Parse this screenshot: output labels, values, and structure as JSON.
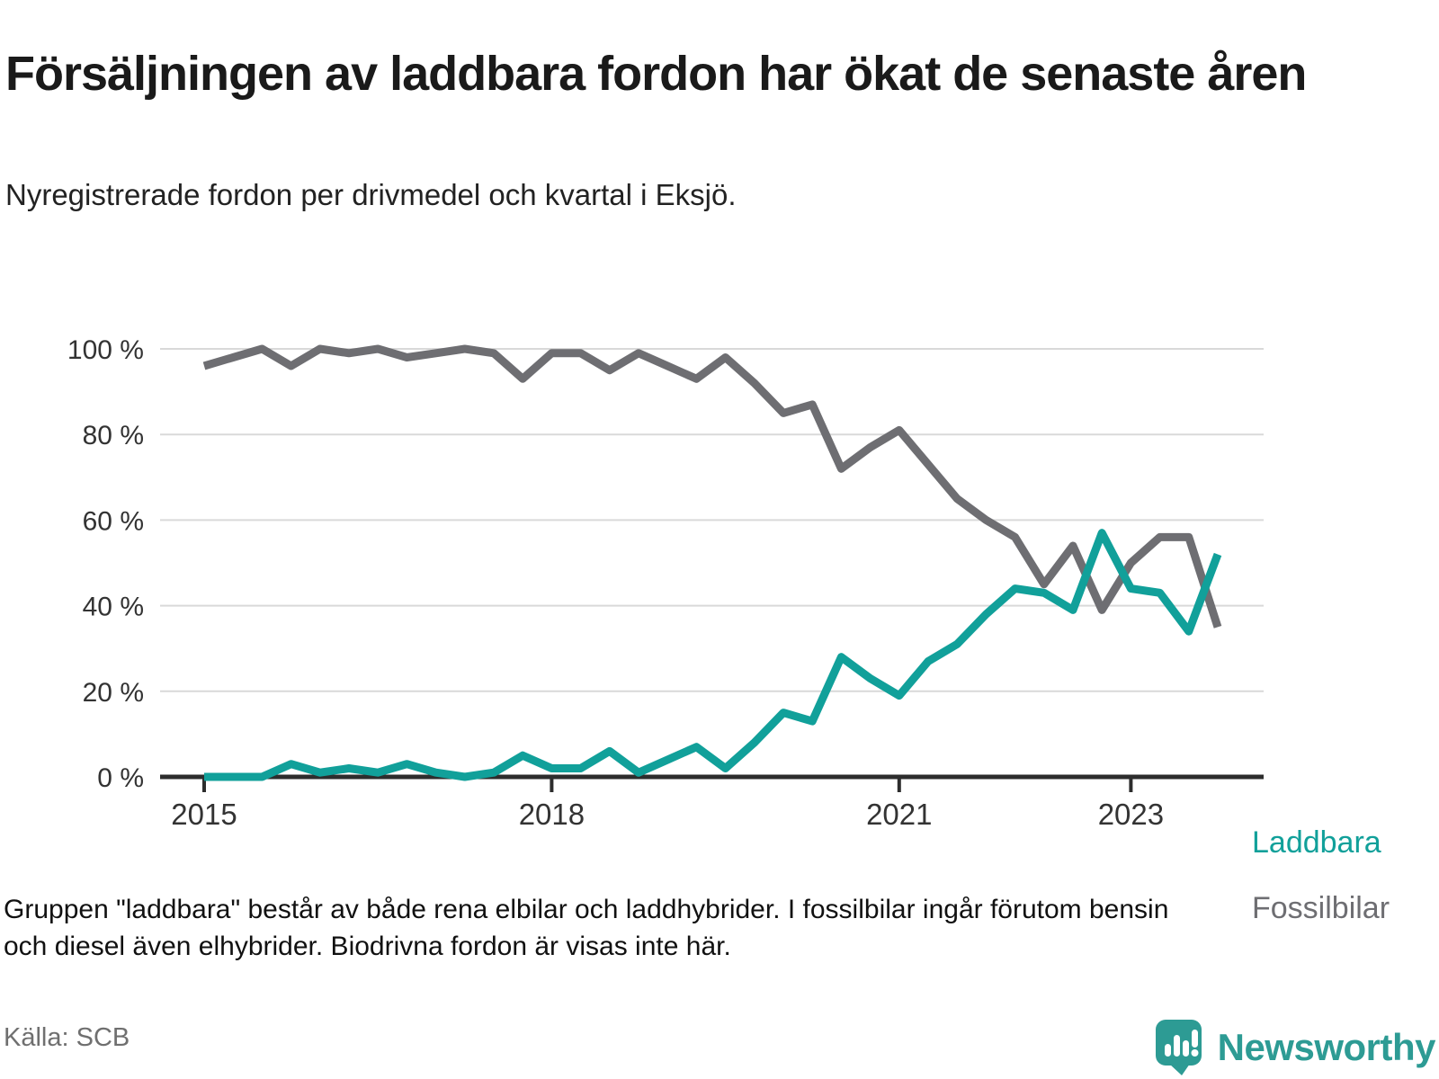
{
  "header": {
    "title": "Försäljningen av laddbara fordon har ökat de senaste åren",
    "subtitle": "Nyregistrerade fordon per drivmedel och kvartal i Eksjö."
  },
  "chart_data": {
    "type": "line",
    "x_unit": "quarter",
    "categories": [
      "2015 Q1",
      "2015 Q2",
      "2015 Q3",
      "2015 Q4",
      "2016 Q1",
      "2016 Q2",
      "2016 Q3",
      "2016 Q4",
      "2017 Q1",
      "2017 Q2",
      "2017 Q3",
      "2017 Q4",
      "2018 Q1",
      "2018 Q2",
      "2018 Q3",
      "2018 Q4",
      "2019 Q1",
      "2019 Q2",
      "2019 Q3",
      "2019 Q4",
      "2020 Q1",
      "2020 Q2",
      "2020 Q3",
      "2020 Q4",
      "2021 Q1",
      "2021 Q2",
      "2021 Q3",
      "2021 Q4",
      "2022 Q1",
      "2022 Q2",
      "2022 Q3",
      "2022 Q4",
      "2023 Q1",
      "2023 Q2",
      "2023 Q3",
      "2023 Q4"
    ],
    "series": [
      {
        "name": "Laddbara",
        "color": "#11a09a",
        "values": [
          0,
          0,
          0,
          3,
          1,
          2,
          1,
          3,
          1,
          0,
          1,
          5,
          2,
          2,
          6,
          1,
          4,
          7,
          2,
          8,
          15,
          13,
          28,
          23,
          19,
          27,
          31,
          38,
          44,
          43,
          39,
          57,
          44,
          43,
          34,
          52
        ]
      },
      {
        "name": "Fossilbilar",
        "color": "#6e6e72",
        "values": [
          96,
          98,
          100,
          96,
          100,
          99,
          100,
          98,
          99,
          100,
          99,
          93,
          99,
          99,
          95,
          99,
          96,
          93,
          98,
          92,
          85,
          87,
          72,
          77,
          81,
          73,
          65,
          60,
          56,
          45,
          54,
          39,
          50,
          56,
          56,
          35
        ]
      }
    ],
    "ylim": [
      0,
      100
    ],
    "yticks": [
      {
        "value": 100,
        "label": "100 %"
      },
      {
        "value": 80,
        "label": "80 %"
      },
      {
        "value": 60,
        "label": "60 %"
      },
      {
        "value": 40,
        "label": "40 %"
      },
      {
        "value": 20,
        "label": "20 %"
      },
      {
        "value": 0,
        "label": "0 %"
      }
    ],
    "xticks": [
      {
        "index": 0,
        "label": "2015"
      },
      {
        "index": 12,
        "label": "2018"
      },
      {
        "index": 24,
        "label": "2021"
      },
      {
        "index": 32,
        "label": "2023"
      }
    ],
    "grid": "horizontal",
    "legend_position": "labels-at-line-end"
  },
  "footnote": {
    "lines": [
      "Gruppen \"laddbara\" består av både rena elbilar och laddhybrider. I fossilbilar ingår förutom bensin",
      "och diesel även elhybrider. Biodrivna fordon är visas inte här."
    ]
  },
  "source": "Källa: SCB",
  "branding": {
    "name": "Newsworthy",
    "icon": "bar-chart-speech-bubble-icon",
    "color": "#2d9b94"
  }
}
